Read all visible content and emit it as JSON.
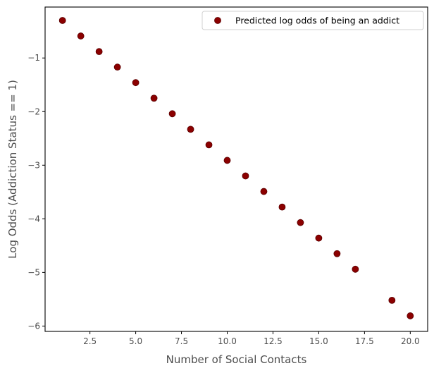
{
  "chart_data": {
    "type": "scatter",
    "title": "",
    "xlabel": "Number of Social Contacts",
    "ylabel": "Log Odds (Addiction Status == 1)",
    "xlim": [
      0.05,
      20.95
    ],
    "ylim": [
      -6.1,
      -0.05
    ],
    "xticks": [
      2.5,
      5.0,
      7.5,
      10.0,
      12.5,
      15.0,
      17.5,
      20.0
    ],
    "xtick_labels": [
      "2.5",
      "5.0",
      "7.5",
      "10.0",
      "12.5",
      "15.0",
      "17.5",
      "20.0"
    ],
    "yticks": [
      -1,
      -2,
      -3,
      -4,
      -5,
      -6
    ],
    "ytick_labels": [
      "−1",
      "−2",
      "−3",
      "−4",
      "−5",
      "−6"
    ],
    "grid": false,
    "legend_position": "top-right",
    "series": [
      {
        "name": "Predicted log odds of being an addict",
        "color": "#8b0000",
        "marker": "circle",
        "x": [
          1,
          2,
          3,
          4,
          5,
          6,
          7,
          8,
          9,
          10,
          11,
          12,
          13,
          14,
          15,
          16,
          17,
          19,
          20
        ],
        "y": [
          -0.3,
          -0.59,
          -0.88,
          -1.17,
          -1.46,
          -1.75,
          -2.04,
          -2.33,
          -2.62,
          -2.91,
          -3.2,
          -3.49,
          -3.78,
          -4.07,
          -4.36,
          -4.65,
          -4.94,
          -5.52,
          -5.81
        ]
      }
    ]
  }
}
